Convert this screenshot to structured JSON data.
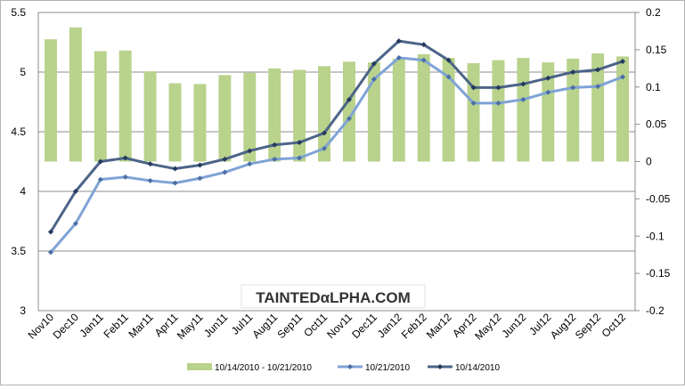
{
  "chart_data": {
    "type": "bar+line",
    "categories": [
      "Nov10",
      "Dec10",
      "Jan11",
      "Feb11",
      "Mar11",
      "Apr11",
      "May11",
      "Jun11",
      "Jul11",
      "Aug11",
      "Sep11",
      "Oct11",
      "Nov11",
      "Dec11",
      "Jan12",
      "Feb12",
      "Mar12",
      "Apr12",
      "May12",
      "Jun12",
      "Jul12",
      "Aug12",
      "Sep12",
      "Oct12"
    ],
    "title": "",
    "xlabel": "",
    "ylabel": "",
    "y_left": {
      "range": [
        3,
        5.5
      ],
      "ticks": [
        "3",
        "3.5",
        "4",
        "4.5",
        "5",
        "5.5"
      ]
    },
    "y_right": {
      "range": [
        -0.2,
        0.2
      ],
      "ticks": [
        "-0.2",
        "-0.15",
        "-0.1",
        "-0.05",
        "0",
        "0.05",
        "0.1",
        "0.15",
        "0.2"
      ]
    },
    "grid": "horizontal",
    "legend_position": "bottom",
    "watermark": "TAINTEDαLPHA.COM",
    "series": [
      {
        "name": "10/14/2010 - 10/21/2010",
        "kind": "bar",
        "axis": "right",
        "color": "#b9d28c",
        "values": [
          0.164,
          0.18,
          0.148,
          0.149,
          0.121,
          0.105,
          0.104,
          0.116,
          0.119,
          0.125,
          0.123,
          0.128,
          0.134,
          0.133,
          0.138,
          0.144,
          0.139,
          0.132,
          0.136,
          0.139,
          0.133,
          0.138,
          0.145,
          0.141
        ]
      },
      {
        "name": "10/21/2010",
        "kind": "line",
        "axis": "left",
        "color": "#7fa3d6",
        "values": [
          3.49,
          3.73,
          4.1,
          4.12,
          4.09,
          4.07,
          4.11,
          4.16,
          4.23,
          4.27,
          4.28,
          4.36,
          4.61,
          4.94,
          5.12,
          5.1,
          4.96,
          4.74,
          4.74,
          4.77,
          4.83,
          4.87,
          4.88,
          4.96
        ]
      },
      {
        "name": "10/14/2010",
        "kind": "line",
        "axis": "left",
        "color": "#4c6488",
        "values": [
          3.66,
          4.0,
          4.25,
          4.28,
          4.23,
          4.19,
          4.22,
          4.27,
          4.34,
          4.39,
          4.41,
          4.49,
          4.77,
          5.07,
          5.26,
          5.23,
          5.1,
          4.87,
          4.87,
          4.9,
          4.95,
          5.0,
          5.02,
          5.09
        ]
      }
    ]
  }
}
